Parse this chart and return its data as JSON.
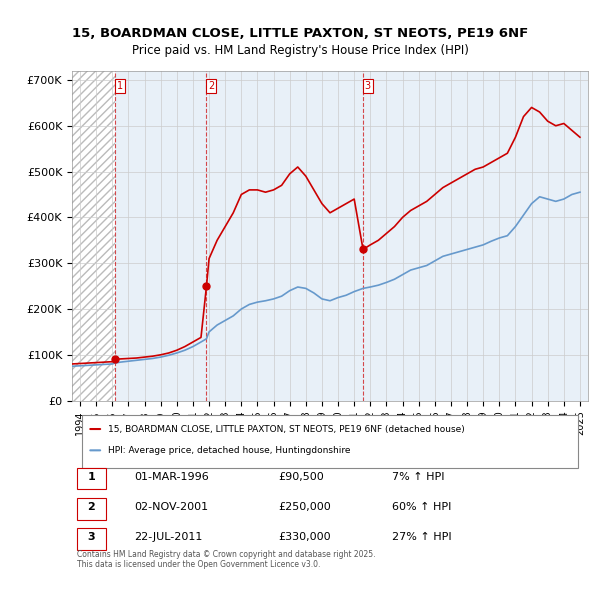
{
  "title": "15, BOARDMAN CLOSE, LITTLE PAXTON, ST NEOTS, PE19 6NF",
  "subtitle": "Price paid vs. HM Land Registry's House Price Index (HPI)",
  "legend_line1": "15, BOARDMAN CLOSE, LITTLE PAXTON, ST NEOTS, PE19 6NF (detached house)",
  "legend_line2": "HPI: Average price, detached house, Huntingdonshire",
  "footer1": "Contains HM Land Registry data © Crown copyright and database right 2025.",
  "footer2": "This data is licensed under the Open Government Licence v3.0.",
  "table": [
    {
      "num": "1",
      "date": "01-MAR-1996",
      "price": "£90,500",
      "change": "7% ↑ HPI"
    },
    {
      "num": "2",
      "date": "02-NOV-2001",
      "price": "£250,000",
      "change": "60% ↑ HPI"
    },
    {
      "num": "3",
      "date": "22-JUL-2011",
      "price": "£330,000",
      "change": "27% ↑ HPI"
    }
  ],
  "sale_dates": [
    1996.17,
    2001.84,
    2011.55
  ],
  "sale_prices": [
    90500,
    250000,
    330000
  ],
  "hpi_line_color": "#6699cc",
  "price_line_color": "#cc0000",
  "bg_hatch_color": "#dddddd",
  "grid_color": "#cccccc",
  "ylim": [
    0,
    720000
  ],
  "xlim_start": 1993.5,
  "xlim_end": 2025.5,
  "hpi_x": [
    1993.5,
    1994,
    1994.5,
    1995,
    1995.5,
    1996,
    1996.17,
    1996.5,
    1997,
    1997.5,
    1998,
    1998.5,
    1999,
    1999.5,
    2000,
    2000.5,
    2001,
    2001.5,
    2001.84,
    2002,
    2002.5,
    2003,
    2003.5,
    2004,
    2004.5,
    2005,
    2005.5,
    2006,
    2006.5,
    2007,
    2007.5,
    2008,
    2008.5,
    2009,
    2009.5,
    2010,
    2010.5,
    2011,
    2011.55,
    2012,
    2012.5,
    2013,
    2013.5,
    2014,
    2014.5,
    2015,
    2015.5,
    2016,
    2016.5,
    2017,
    2017.5,
    2018,
    2018.5,
    2019,
    2019.5,
    2020,
    2020.5,
    2021,
    2021.5,
    2022,
    2022.5,
    2023,
    2023.5,
    2024,
    2024.5,
    2025
  ],
  "hpi_y": [
    75000,
    76000,
    77000,
    78000,
    79000,
    80000,
    82000,
    84000,
    86000,
    88000,
    90000,
    92000,
    95000,
    99000,
    104000,
    110000,
    118000,
    128000,
    135000,
    150000,
    165000,
    175000,
    185000,
    200000,
    210000,
    215000,
    218000,
    222000,
    228000,
    240000,
    248000,
    245000,
    235000,
    222000,
    218000,
    225000,
    230000,
    238000,
    245000,
    248000,
    252000,
    258000,
    265000,
    275000,
    285000,
    290000,
    295000,
    305000,
    315000,
    320000,
    325000,
    330000,
    335000,
    340000,
    348000,
    355000,
    360000,
    380000,
    405000,
    430000,
    445000,
    440000,
    435000,
    440000,
    450000,
    455000
  ],
  "price_x": [
    1993.5,
    1994,
    1994.5,
    1995,
    1995.5,
    1996,
    1996.17,
    1996.5,
    1997,
    1997.5,
    1998,
    1998.5,
    1999,
    1999.5,
    2000,
    2000.5,
    2001,
    2001.5,
    2001.84,
    2002,
    2002.5,
    2003,
    2003.5,
    2004,
    2004.5,
    2005,
    2005.5,
    2006,
    2006.5,
    2007,
    2007.5,
    2008,
    2008.5,
    2009,
    2009.5,
    2010,
    2010.5,
    2011,
    2011.55,
    2012,
    2012.5,
    2013,
    2013.5,
    2014,
    2014.5,
    2015,
    2015.5,
    2016,
    2016.5,
    2017,
    2017.5,
    2018,
    2018.5,
    2019,
    2019.5,
    2020,
    2020.5,
    2021,
    2021.5,
    2022,
    2022.5,
    2023,
    2023.5,
    2024,
    2024.5,
    2025
  ],
  "price_y": [
    80000,
    81000,
    82000,
    83000,
    84000,
    85000,
    90500,
    91000,
    92000,
    93000,
    95000,
    97000,
    100000,
    104000,
    110000,
    118000,
    128000,
    138000,
    250000,
    310000,
    350000,
    380000,
    410000,
    450000,
    460000,
    460000,
    455000,
    460000,
    470000,
    495000,
    510000,
    490000,
    460000,
    430000,
    410000,
    420000,
    430000,
    440000,
    330000,
    340000,
    350000,
    365000,
    380000,
    400000,
    415000,
    425000,
    435000,
    450000,
    465000,
    475000,
    485000,
    495000,
    505000,
    510000,
    520000,
    530000,
    540000,
    575000,
    620000,
    640000,
    630000,
    610000,
    600000,
    605000,
    590000,
    575000
  ]
}
